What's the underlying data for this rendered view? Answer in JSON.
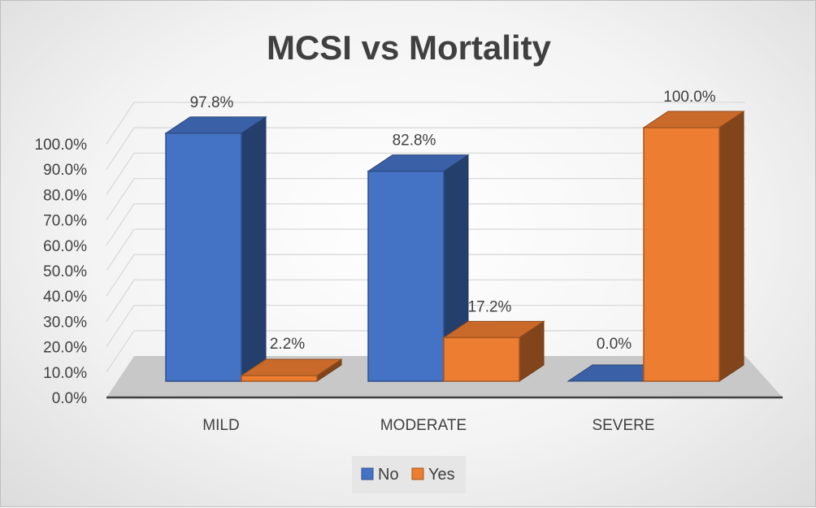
{
  "chart_data": {
    "type": "bar",
    "title": "MCSI vs Mortality",
    "categories": [
      "MILD",
      "MODERATE",
      "SEVERE"
    ],
    "series": [
      {
        "name": "No",
        "values": [
          97.8,
          82.8,
          0.0
        ],
        "labels": [
          "97.8%",
          "82.8%",
          "0.0%"
        ],
        "color": "#4472c4"
      },
      {
        "name": "Yes",
        "values": [
          2.2,
          17.2,
          100.0
        ],
        "labels": [
          "2.2%",
          "17.2%",
          "100.0%"
        ],
        "color": "#ed7d31"
      }
    ],
    "yticks": [
      "0.0%",
      "10.0%",
      "20.0%",
      "30.0%",
      "40.0%",
      "50.0%",
      "60.0%",
      "70.0%",
      "80.0%",
      "90.0%",
      "100.0%"
    ],
    "ylim": [
      0,
      100
    ],
    "grid": true,
    "legend": "bottom",
    "style": "3d-column"
  }
}
